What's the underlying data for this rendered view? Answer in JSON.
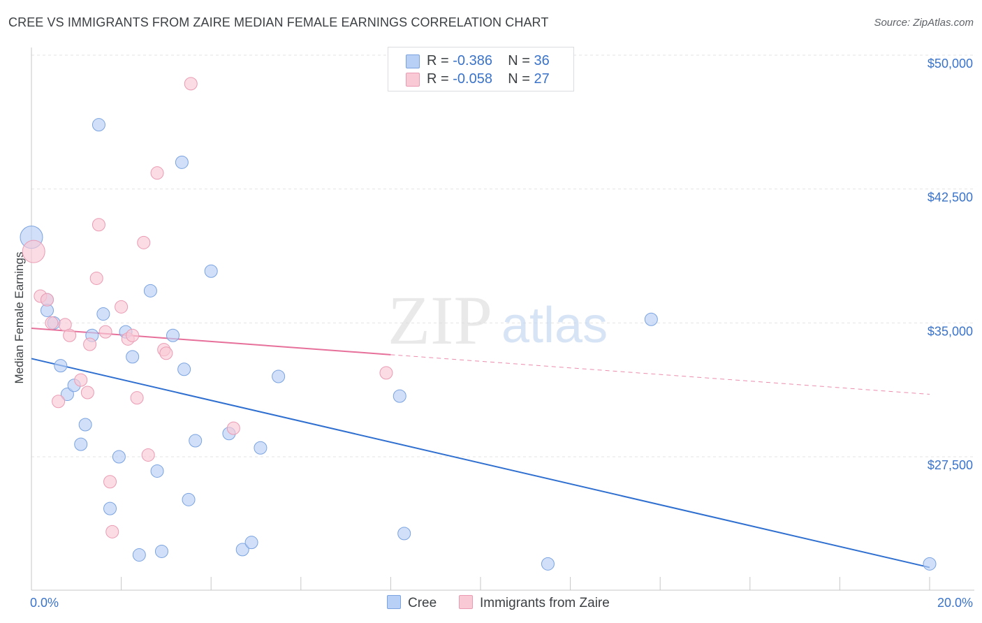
{
  "title": "CREE VS IMMIGRANTS FROM ZAIRE MEDIAN FEMALE EARNINGS CORRELATION CHART",
  "source": "Source: ZipAtlas.com",
  "watermark": {
    "zip": "ZIP",
    "atlas": "atlas"
  },
  "legend": {
    "rows": [
      {
        "r_label": "R =",
        "r_value": "-0.386",
        "n_label": "N =",
        "n_value": "36",
        "color": "#b8d0f5",
        "border": "#7aa3e0"
      },
      {
        "r_label": "R =",
        "r_value": "-0.058",
        "n_label": "N =",
        "n_value": "27",
        "color": "#f9c9d6",
        "border": "#ea9bb3"
      }
    ]
  },
  "bottom_legend": [
    {
      "label": "Cree",
      "color": "#b8d0f5",
      "border": "#7aa3e0"
    },
    {
      "label": "Immigrants from Zaire",
      "color": "#f9c9d6",
      "border": "#ea9bb3"
    }
  ],
  "chart_data": {
    "type": "scatter",
    "title": "CREE VS IMMIGRANTS FROM ZAIRE MEDIAN FEMALE EARNINGS CORRELATION CHART",
    "xlabel": "",
    "ylabel": "Median Female Earnings",
    "xlim": [
      0,
      20
    ],
    "ylim": [
      21000,
      51000
    ],
    "x_tick_labels": [
      {
        "value": 0,
        "label": "0.0%"
      },
      {
        "value": 20,
        "label": "20.0%"
      }
    ],
    "y_tick_labels": [
      {
        "value": 27500,
        "label": "$27,500"
      },
      {
        "value": 35000,
        "label": "$35,000"
      },
      {
        "value": 42500,
        "label": "$42,500"
      },
      {
        "value": 50000,
        "label": "$50,000"
      }
    ],
    "gridlines": [
      27500,
      35000,
      42500,
      50000
    ],
    "series": [
      {
        "name": "Cree",
        "color": "#b8d0f5",
        "stroke": "#7aa3e0",
        "line_color": "#2f6fd0",
        "points": [
          [
            0.0,
            39.8,
            16
          ],
          [
            0.35,
            36.3,
            9
          ],
          [
            0.35,
            35.7,
            9
          ],
          [
            0.5,
            35.0,
            9
          ],
          [
            0.65,
            32.6,
            9
          ],
          [
            0.8,
            31.0,
            9
          ],
          [
            0.95,
            31.5,
            9
          ],
          [
            1.1,
            28.2,
            9
          ],
          [
            1.2,
            29.3,
            9
          ],
          [
            1.35,
            34.3,
            9
          ],
          [
            1.5,
            46.1,
            9
          ],
          [
            1.6,
            35.5,
            9
          ],
          [
            1.75,
            24.6,
            9
          ],
          [
            1.95,
            27.5,
            9
          ],
          [
            2.1,
            34.5,
            9
          ],
          [
            2.25,
            33.1,
            9
          ],
          [
            2.4,
            22.0,
            9
          ],
          [
            2.65,
            36.8,
            9
          ],
          [
            2.8,
            26.7,
            9
          ],
          [
            2.9,
            22.2,
            9
          ],
          [
            3.15,
            34.3,
            9
          ],
          [
            3.35,
            44.0,
            9
          ],
          [
            3.4,
            32.4,
            9
          ],
          [
            3.5,
            25.1,
            9
          ],
          [
            3.65,
            28.4,
            9
          ],
          [
            4.0,
            37.9,
            9
          ],
          [
            4.4,
            28.8,
            9
          ],
          [
            4.7,
            22.3,
            9
          ],
          [
            4.9,
            22.7,
            9
          ],
          [
            5.1,
            28.0,
            9
          ],
          [
            5.5,
            32.0,
            9
          ],
          [
            8.2,
            30.9,
            9
          ],
          [
            8.3,
            23.2,
            9
          ],
          [
            11.5,
            21.5,
            9
          ],
          [
            13.8,
            35.2,
            9
          ],
          [
            20.0,
            21.5,
            9
          ]
        ],
        "trend": {
          "x0": 0,
          "y0": 33.0,
          "x1": 20,
          "y1": 21.3,
          "dashed_from": null
        }
      },
      {
        "name": "Immigrants from Zaire",
        "color": "#f9c9d6",
        "stroke": "#ea9bb3",
        "line_color": "#e6709a",
        "points": [
          [
            0.05,
            39.0,
            16
          ],
          [
            0.2,
            36.5,
            9
          ],
          [
            0.35,
            36.3,
            9
          ],
          [
            0.45,
            35.0,
            9
          ],
          [
            0.6,
            30.6,
            9
          ],
          [
            0.75,
            34.9,
            9
          ],
          [
            0.85,
            34.3,
            9
          ],
          [
            1.1,
            31.8,
            9
          ],
          [
            1.25,
            31.1,
            9
          ],
          [
            1.3,
            33.8,
            9
          ],
          [
            1.45,
            37.5,
            9
          ],
          [
            1.5,
            40.5,
            9
          ],
          [
            1.65,
            34.5,
            9
          ],
          [
            1.75,
            26.1,
            9
          ],
          [
            1.8,
            23.3,
            9
          ],
          [
            2.0,
            35.9,
            9
          ],
          [
            2.15,
            34.1,
            9
          ],
          [
            2.25,
            34.3,
            9
          ],
          [
            2.35,
            30.8,
            9
          ],
          [
            2.5,
            39.5,
            9
          ],
          [
            2.6,
            27.6,
            9
          ],
          [
            2.8,
            43.4,
            9
          ],
          [
            2.95,
            33.5,
            9
          ],
          [
            3.0,
            33.3,
            9
          ],
          [
            3.55,
            48.4,
            9
          ],
          [
            4.5,
            29.1,
            9
          ],
          [
            7.9,
            32.2,
            9
          ]
        ],
        "trend": {
          "x0": 0,
          "y0": 34.7,
          "x1": 20,
          "y1": 31.0,
          "dashed_from": 8.0
        }
      }
    ]
  }
}
